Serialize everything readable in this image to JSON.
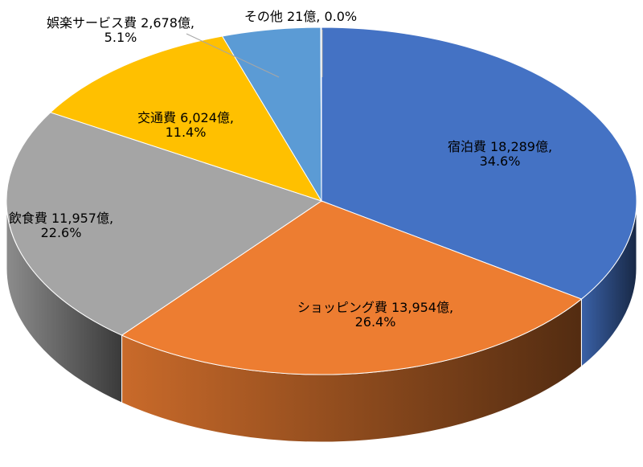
{
  "chart_data": {
    "type": "pie",
    "title": "",
    "unit": "億",
    "slices": [
      {
        "label": "宿泊費",
        "value": 18289,
        "value_text": "18,289億",
        "percent_text": "34.6%",
        "color": "#4472C4"
      },
      {
        "label": "ショッピング費",
        "value": 13954,
        "value_text": "13,954億",
        "percent_text": "26.4%",
        "color": "#ED7D31"
      },
      {
        "label": "飲食費",
        "value": 11957,
        "value_text": "11,957億",
        "percent_text": "22.6%",
        "color": "#A5A5A5"
      },
      {
        "label": "交通費",
        "value": 6024,
        "value_text": "6,024億",
        "percent_text": "11.4%",
        "color": "#FFC000"
      },
      {
        "label": "娯楽サービス費",
        "value": 2678,
        "value_text": "2,678億",
        "percent_text": "5.1%",
        "color": "#5B9BD5"
      },
      {
        "label": "その他",
        "value": 21,
        "value_text": "21億",
        "percent_text": "0.0%",
        "color": "#70AD47"
      }
    ],
    "legend": "none",
    "style": "3d"
  }
}
